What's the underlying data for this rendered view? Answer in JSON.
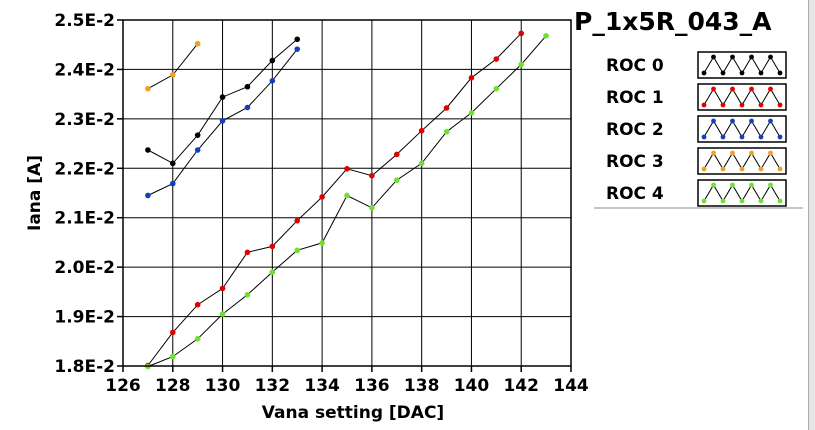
{
  "chart_data": {
    "type": "line",
    "title": "P_1x5R_043_A",
    "xlabel": "Vana setting [DAC]",
    "ylabel": "Iana [A]",
    "xlim": [
      126,
      144
    ],
    "ylim": [
      0.018,
      0.025
    ],
    "x_ticks": [
      126,
      128,
      130,
      132,
      134,
      136,
      138,
      140,
      142,
      144
    ],
    "y_ticks": [
      0.018,
      0.019,
      0.02,
      0.021,
      0.022,
      0.023,
      0.024,
      0.025
    ],
    "y_tick_labels": [
      "1.8E-2",
      "1.9E-2",
      "2.0E-2",
      "2.1E-2",
      "2.2E-2",
      "2.3E-2",
      "2.4E-2",
      "2.5E-2"
    ],
    "grid": true,
    "legend_position": "right",
    "series": [
      {
        "name": "ROC 0",
        "color": "#000000",
        "x": [
          127,
          128,
          129,
          130,
          131,
          132,
          133
        ],
        "y": [
          0.02237,
          0.0221,
          0.02267,
          0.02344,
          0.02365,
          0.02418,
          0.02461
        ]
      },
      {
        "name": "ROC 1",
        "color": "#e00000",
        "x": [
          127,
          128,
          129,
          130,
          131,
          132,
          133,
          134,
          135,
          136,
          137,
          138,
          139,
          140,
          141,
          142
        ],
        "y": [
          0.01801,
          0.01868,
          0.01924,
          0.01957,
          0.0203,
          0.02042,
          0.02094,
          0.02142,
          0.02199,
          0.02185,
          0.02228,
          0.02276,
          0.02322,
          0.02383,
          0.02421,
          0.02473
        ]
      },
      {
        "name": "ROC 2",
        "color": "#1040c0",
        "x": [
          127,
          128,
          129,
          130,
          131,
          132,
          133
        ],
        "y": [
          0.02145,
          0.02169,
          0.02237,
          0.02296,
          0.02323,
          0.02377,
          0.02441
        ]
      },
      {
        "name": "ROC 3",
        "color": "#f0a020",
        "x": [
          127,
          128,
          129
        ],
        "y": [
          0.02361,
          0.02389,
          0.02452
        ]
      },
      {
        "name": "ROC 4",
        "color": "#70e030",
        "x": [
          127,
          128,
          129,
          130,
          131,
          132,
          133,
          134,
          135,
          136,
          137,
          138,
          139,
          140,
          141,
          142,
          143
        ],
        "y": [
          0.01799,
          0.01819,
          0.01855,
          0.01905,
          0.01944,
          0.0199,
          0.02034,
          0.02049,
          0.02145,
          0.0212,
          0.02176,
          0.0221,
          0.02274,
          0.02312,
          0.02361,
          0.0241,
          0.02468
        ]
      }
    ]
  }
}
